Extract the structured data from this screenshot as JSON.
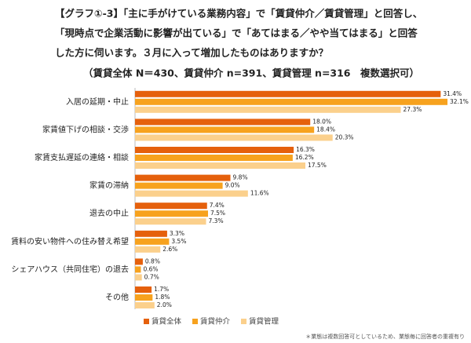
{
  "chart_data": {
    "type": "bar",
    "orientation": "horizontal",
    "title": [
      "【グラフ①-3】「主に手がけている業務内容」で「賃貸仲介／賃貸管理」と回答し、",
      "「現時点で企業活動に影響が出ている」で「あてはまる／やや当てはまる」と回答",
      "した方に伺います。３月に入って増加したものはありますか？"
    ],
    "subtitle": "（賃貸全体 N＝430、賃貸仲介 n=391、賃貸管理 n=316　複数選択可）",
    "categories": [
      "入居の延期・中止",
      "家賃値下げの相談・交渉",
      "家賃支払遅延の連絡・相談",
      "家賃の滞納",
      "退去の中止",
      "賃料の安い物件への住み替え希望",
      "シェアハウス（共同住宅）の退去",
      "その他"
    ],
    "series": [
      {
        "name": "賃貸全体",
        "color": "#e5600c",
        "values": [
          31.4,
          18.0,
          16.3,
          9.8,
          7.4,
          3.3,
          0.8,
          1.7
        ],
        "value_labels": [
          "31.4%",
          "18.0%",
          "16.3%",
          "9.8%",
          "7.4%",
          "3.3%",
          "0.8%",
          "1.7%"
        ]
      },
      {
        "name": "賃貸仲介",
        "color": "#f7a21e",
        "values": [
          32.1,
          18.4,
          16.2,
          9.0,
          7.5,
          3.5,
          0.6,
          1.8
        ],
        "value_labels": [
          "32.1%",
          "18.4%",
          "16.2%",
          "9.0%",
          "7.5%",
          "3.5%",
          "0.6%",
          "1.8%"
        ]
      },
      {
        "name": "賃貸管理",
        "color": "#fbd08c",
        "values": [
          27.3,
          20.3,
          17.5,
          11.6,
          7.3,
          2.6,
          0.7,
          2.0
        ],
        "value_labels": [
          "27.3%",
          "20.3%",
          "17.5%",
          "11.6%",
          "7.3%",
          "2.6%",
          "0.7%",
          "2.0%"
        ]
      }
    ],
    "legend": "bottom",
    "footnote": "＊業態は複数回答可としているため、業態毎に回答者の重複有り"
  }
}
